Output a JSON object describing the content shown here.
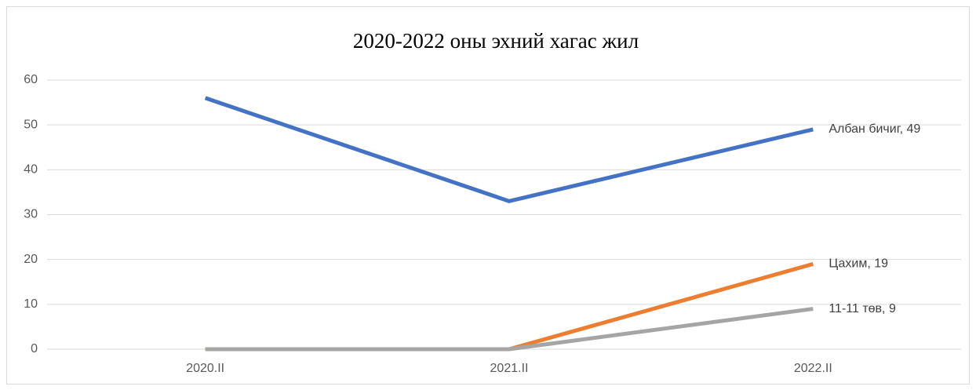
{
  "chart_data": {
    "type": "line",
    "title": "2020-2022 оны эхний хагас жил",
    "categories": [
      "2020.II",
      "2021.II",
      "2022.II"
    ],
    "series": [
      {
        "name": "Албан бичиг",
        "color": "#4472c4",
        "values": [
          56,
          33,
          49
        ],
        "value_labels": [
          null,
          null,
          "Албан бичиг, 49"
        ]
      },
      {
        "name": "Цахим",
        "color": "#ed7d31",
        "values": [
          0,
          0,
          19
        ],
        "value_labels": [
          null,
          null,
          "Цахим, 19"
        ]
      },
      {
        "name": "11-11 төв",
        "color": "#a5a5a5",
        "values": [
          0,
          0,
          9
        ],
        "value_labels": [
          null,
          null,
          "11-11 төв, 9"
        ]
      }
    ],
    "ylim": [
      0,
      60
    ],
    "yticks": [
      0,
      10,
      20,
      30,
      40,
      50,
      60
    ],
    "grid": true
  }
}
